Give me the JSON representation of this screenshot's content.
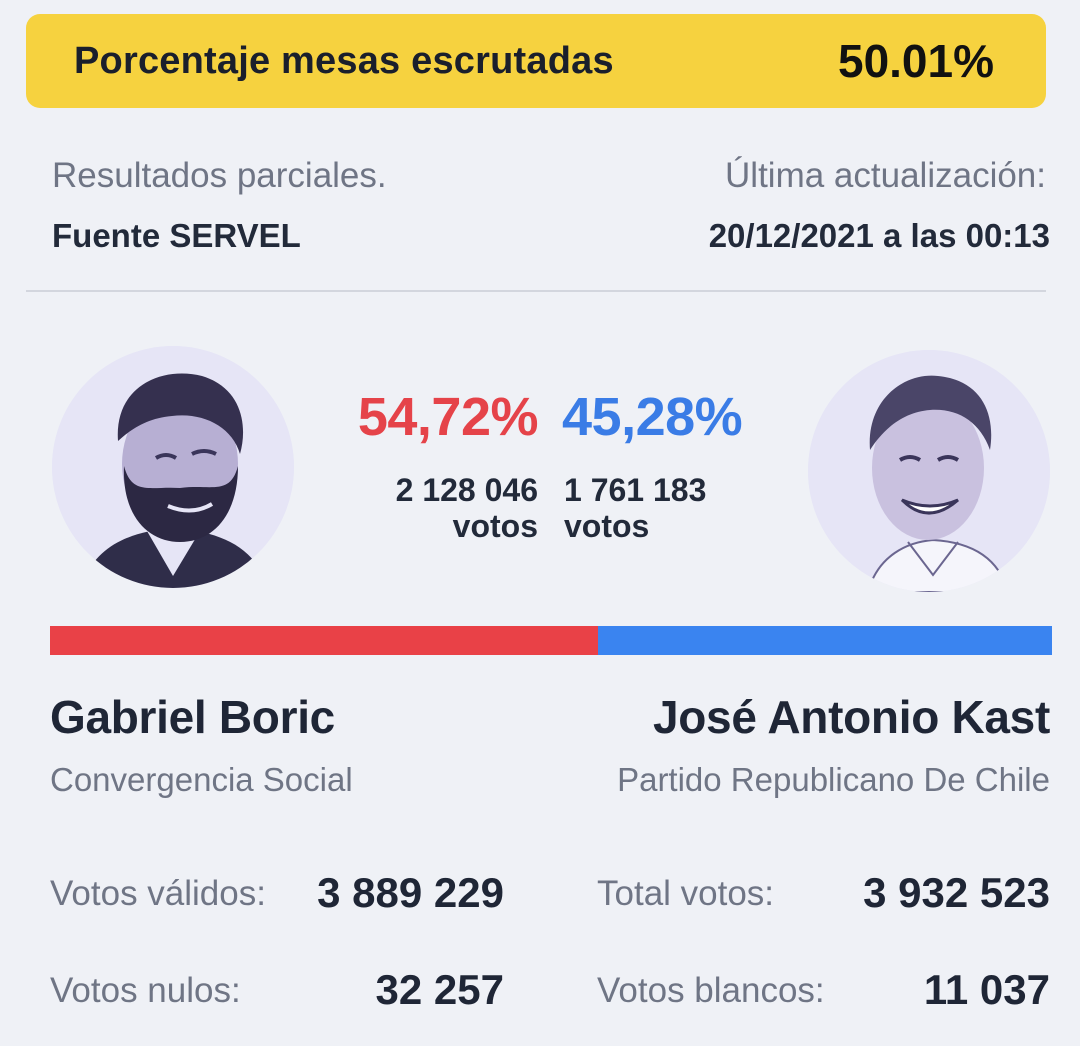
{
  "banner": {
    "label": "Porcentaje mesas escrutadas",
    "value": "50.01%"
  },
  "meta": {
    "partial": "Resultados parciales.",
    "source": "Fuente SERVEL",
    "updated_label": "Última actualización:",
    "updated_value": "20/12/2021 a las 00:13"
  },
  "candidates": {
    "left": {
      "name": "Gabriel Boric",
      "party": "Convergencia Social",
      "percent": "54,72%",
      "votes": "2 128 046",
      "votes_unit": "votos",
      "share": 54.72,
      "color": "#e94147",
      "avatar_icon": "candidate-portrait-icon"
    },
    "right": {
      "name": "José Antonio Kast",
      "party": "Partido Republicano De Chile",
      "percent": "45,28%",
      "votes": "1 761 183",
      "votes_unit": "votos",
      "share": 45.28,
      "color": "#3a84f0",
      "avatar_icon": "candidate-portrait-icon"
    }
  },
  "stats": {
    "valid_label": "Votos válidos:",
    "valid_value": "3 889 229",
    "total_label": "Total votos:",
    "total_value": "3 932 523",
    "null_label": "Votos nulos:",
    "null_value": "32 257",
    "blank_label": "Votos blancos:",
    "blank_value": "11 037"
  },
  "colors": {
    "banner": "#f6d23f",
    "background": "#eff1f6",
    "accent_red": "#e54349",
    "accent_blue": "#3a7ce6"
  }
}
